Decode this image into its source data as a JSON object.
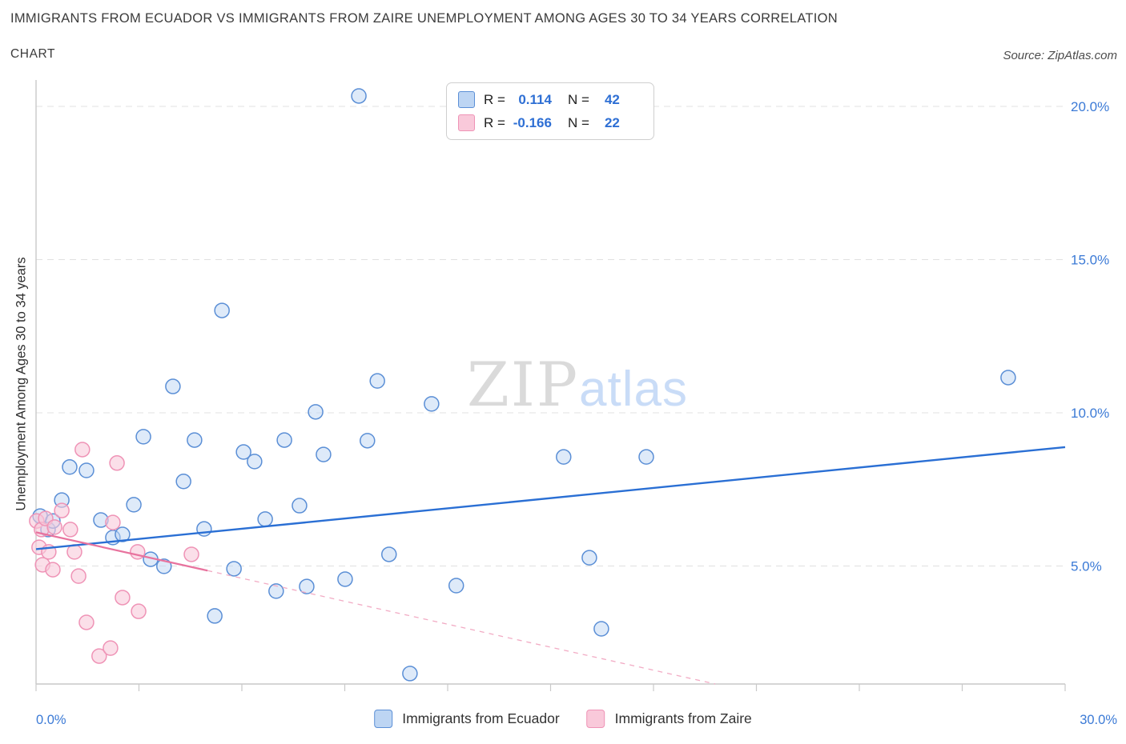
{
  "header": {
    "title": "IMMIGRANTS FROM ECUADOR VS IMMIGRANTS FROM ZAIRE UNEMPLOYMENT AMONG AGES 30 TO 34 YEARS CORRELATION",
    "subtitle": "CHART",
    "source": "Source: ZipAtlas.com"
  },
  "watermark": {
    "part1": "ZIP",
    "part2": "atlas"
  },
  "axes": {
    "ylabel": "Unemployment Among Ages 30 to 34 years",
    "x_min_label": "0.0%",
    "x_max_label": "30.0%"
  },
  "stats_legend": {
    "rows": [
      {
        "series": "ecuador",
        "r_label": "R =",
        "r_value": "0.114",
        "n_label": "N =",
        "n_value": "42"
      },
      {
        "series": "zaire",
        "r_label": "R =",
        "r_value": "-0.166",
        "n_label": "N =",
        "n_value": "22"
      }
    ]
  },
  "bottom_legend": {
    "items": [
      {
        "series": "ecuador",
        "label": "Immigrants from Ecuador"
      },
      {
        "series": "zaire",
        "label": "Immigrants from Zaire"
      }
    ]
  },
  "colors": {
    "ecuador_fill": "#bdd5f3",
    "ecuador_stroke": "#5b8fd6",
    "ecuador_line": "#2a6fd4",
    "zaire_fill": "#f9c9da",
    "zaire_stroke": "#ef93b6",
    "zaire_line": "#e8739e",
    "zaire_line_dashed": "#f2abc4",
    "axis_label": "#3b7ad6",
    "grid": "#e0e0e0",
    "axis_line": "#c9c9c9"
  },
  "chart_data": {
    "type": "scatter",
    "title": "Immigrants from Ecuador vs Immigrants from Zaire Unemployment Among Ages 30 to 34 years Correlation",
    "xlabel": "",
    "ylabel": "Unemployment Among Ages 30 to 34 years",
    "xlim": [
      0,
      30
    ],
    "ylim": [
      0,
      21
    ],
    "grid": "horizontal-dashed",
    "legend_position": "bottom",
    "x_tick_labels": [
      "0.0%",
      "30.0%"
    ],
    "y_ticks": [
      {
        "value": 5,
        "label": "5.0%"
      },
      {
        "value": 10,
        "label": "10.0%"
      },
      {
        "value": 15,
        "label": "15.0%"
      },
      {
        "value": 20,
        "label": "20.0%"
      }
    ],
    "series": [
      {
        "name": "Immigrants from Ecuador",
        "R": 0.114,
        "N": 42,
        "points": [
          [
            0.12,
            6.63
          ],
          [
            0.35,
            6.19
          ],
          [
            0.49,
            6.47
          ],
          [
            0.75,
            7.15
          ],
          [
            0.98,
            8.23
          ],
          [
            1.47,
            8.12
          ],
          [
            1.89,
            6.5
          ],
          [
            2.24,
            5.93
          ],
          [
            2.52,
            6.03
          ],
          [
            2.85,
            7.0
          ],
          [
            3.13,
            9.22
          ],
          [
            3.34,
            5.22
          ],
          [
            3.73,
            4.99
          ],
          [
            3.99,
            10.86
          ],
          [
            4.3,
            7.76
          ],
          [
            4.62,
            9.11
          ],
          [
            4.9,
            6.21
          ],
          [
            5.21,
            3.37
          ],
          [
            5.42,
            13.34
          ],
          [
            5.77,
            4.91
          ],
          [
            6.05,
            8.72
          ],
          [
            6.37,
            8.41
          ],
          [
            6.68,
            6.53
          ],
          [
            7.0,
            4.18
          ],
          [
            7.24,
            9.11
          ],
          [
            7.68,
            6.97
          ],
          [
            7.89,
            4.33
          ],
          [
            8.15,
            10.03
          ],
          [
            8.38,
            8.64
          ],
          [
            9.01,
            4.57
          ],
          [
            9.41,
            20.34
          ],
          [
            9.66,
            9.09
          ],
          [
            9.95,
            11.04
          ],
          [
            10.29,
            5.38
          ],
          [
            10.9,
            1.49
          ],
          [
            11.53,
            10.29
          ],
          [
            12.25,
            4.36
          ],
          [
            15.38,
            8.56
          ],
          [
            16.13,
            5.27
          ],
          [
            16.48,
            2.95
          ],
          [
            17.79,
            8.56
          ],
          [
            28.34,
            11.15
          ]
        ]
      },
      {
        "name": "Immigrants from Zaire",
        "R": -0.166,
        "N": 22,
        "points": [
          [
            0.02,
            6.47
          ],
          [
            0.09,
            5.61
          ],
          [
            0.16,
            6.19
          ],
          [
            0.19,
            5.04
          ],
          [
            0.28,
            6.55
          ],
          [
            0.37,
            5.46
          ],
          [
            0.49,
            4.88
          ],
          [
            0.54,
            6.27
          ],
          [
            0.75,
            6.81
          ],
          [
            1.0,
            6.19
          ],
          [
            1.12,
            5.46
          ],
          [
            1.24,
            4.67
          ],
          [
            1.35,
            8.8
          ],
          [
            1.47,
            3.16
          ],
          [
            1.84,
            2.06
          ],
          [
            2.17,
            2.32
          ],
          [
            2.24,
            6.42
          ],
          [
            2.36,
            8.36
          ],
          [
            2.52,
            3.97
          ],
          [
            2.96,
            5.46
          ],
          [
            2.99,
            3.52
          ],
          [
            4.53,
            5.38
          ]
        ]
      }
    ],
    "trendlines": [
      {
        "series": "ecuador",
        "style": "solid",
        "x1": 0,
        "y1": 5.55,
        "x2": 30,
        "y2": 8.88
      },
      {
        "series": "zaire",
        "style": "solid",
        "x1": 0,
        "y1": 6.1,
        "x2": 5.0,
        "y2": 4.85
      },
      {
        "series": "zaire",
        "style": "dashed",
        "x1": 5.0,
        "y1": 4.85,
        "x2": 19.8,
        "y2": 1.15
      }
    ]
  }
}
